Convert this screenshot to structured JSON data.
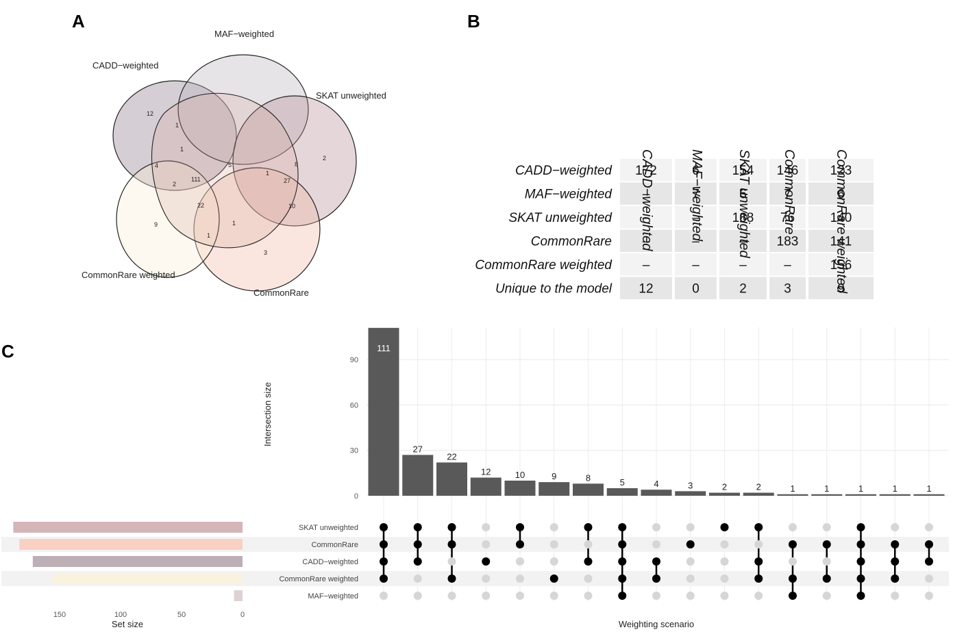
{
  "panels": {
    "a": "A",
    "b": "B",
    "c": "C"
  },
  "venn": {
    "sets": [
      {
        "label": "CADD−weighted",
        "color": "#8a7487"
      },
      {
        "label": "MAF−weighted",
        "color": "#b9b1be"
      },
      {
        "label": "SKAT unweighted",
        "color": "#b58a93"
      },
      {
        "label": "CommonRare",
        "color": "#f2b8a4"
      },
      {
        "label": "CommonRare weighted",
        "color": "#f9ecd4"
      }
    ],
    "regions": [
      "12",
      "1",
      "1",
      "4",
      "2",
      "111",
      "5",
      "1",
      "8",
      "27",
      "2",
      "22",
      "10",
      "9",
      "1",
      "1",
      "3"
    ]
  },
  "table": {
    "columns": [
      "CADD−weighted",
      "MAF−weighted",
      "SKAT unweighted",
      "CommonRare",
      "CommonRare weighted"
    ],
    "rows": [
      {
        "label": "CADD−weighted",
        "cells": [
          "172",
          "6",
          "154",
          "146",
          "123"
        ]
      },
      {
        "label": "MAF−weighted",
        "cells": [
          "–",
          "7",
          "6",
          "7",
          "6"
        ]
      },
      {
        "label": "SKAT unweighted",
        "cells": [
          "–",
          "–",
          "188",
          "76",
          "140"
        ]
      },
      {
        "label": "CommonRare",
        "cells": [
          "–",
          "–",
          "–",
          "183",
          "141"
        ]
      },
      {
        "label": "CommonRare weighted",
        "cells": [
          "–",
          "–",
          "–",
          "–",
          "156"
        ]
      },
      {
        "label": "Unique to the model",
        "cells": [
          "12",
          "0",
          "2",
          "3",
          "9"
        ]
      }
    ]
  },
  "chart_data": {
    "type": "bar",
    "title": "",
    "xlabel": "Weighting scenario",
    "ylabel": "Intersection size",
    "ylim": [
      0,
      115
    ],
    "yticks": [
      "0",
      "30",
      "60",
      "90"
    ],
    "values": [
      111,
      27,
      22,
      12,
      10,
      9,
      8,
      5,
      4,
      3,
      2,
      2,
      1,
      1,
      1,
      1,
      1
    ],
    "value_labels": [
      "111",
      "27",
      "22",
      "12",
      "10",
      "9",
      "8",
      "5",
      "4",
      "3",
      "2",
      "2",
      "1",
      "1",
      "1",
      "1",
      "1"
    ],
    "bar_color": "#595959",
    "sets": [
      "SKAT unweighted",
      "CommonRare",
      "CADD−weighted",
      "CommonRare weighted",
      "MAF−weighted"
    ],
    "membership": [
      [
        1,
        1,
        1,
        1,
        0
      ],
      [
        1,
        1,
        1,
        0,
        0
      ],
      [
        1,
        1,
        0,
        1,
        0
      ],
      [
        0,
        0,
        1,
        0,
        0
      ],
      [
        1,
        1,
        0,
        0,
        0
      ],
      [
        0,
        0,
        0,
        1,
        0
      ],
      [
        1,
        0,
        1,
        0,
        0
      ],
      [
        1,
        1,
        1,
        1,
        1
      ],
      [
        0,
        0,
        1,
        1,
        0
      ],
      [
        0,
        1,
        0,
        0,
        0
      ],
      [
        1,
        0,
        0,
        0,
        0
      ],
      [
        1,
        0,
        1,
        1,
        0
      ],
      [
        0,
        1,
        0,
        1,
        1
      ],
      [
        0,
        1,
        0,
        1,
        0
      ],
      [
        1,
        1,
        1,
        1,
        1
      ],
      [
        0,
        1,
        1,
        1,
        0
      ],
      [
        0,
        1,
        1,
        0,
        0
      ]
    ],
    "set_sizes": {
      "values": [
        188,
        183,
        172,
        156,
        7
      ],
      "colors": [
        "#d4b5b8",
        "#f9d0c4",
        "#bcafb6",
        "#f9f2df",
        "#ddd3d3"
      ],
      "xlabel": "Set size",
      "ticks": [
        "150",
        "100",
        "50",
        "0"
      ],
      "xlim": [
        0,
        190
      ]
    }
  }
}
